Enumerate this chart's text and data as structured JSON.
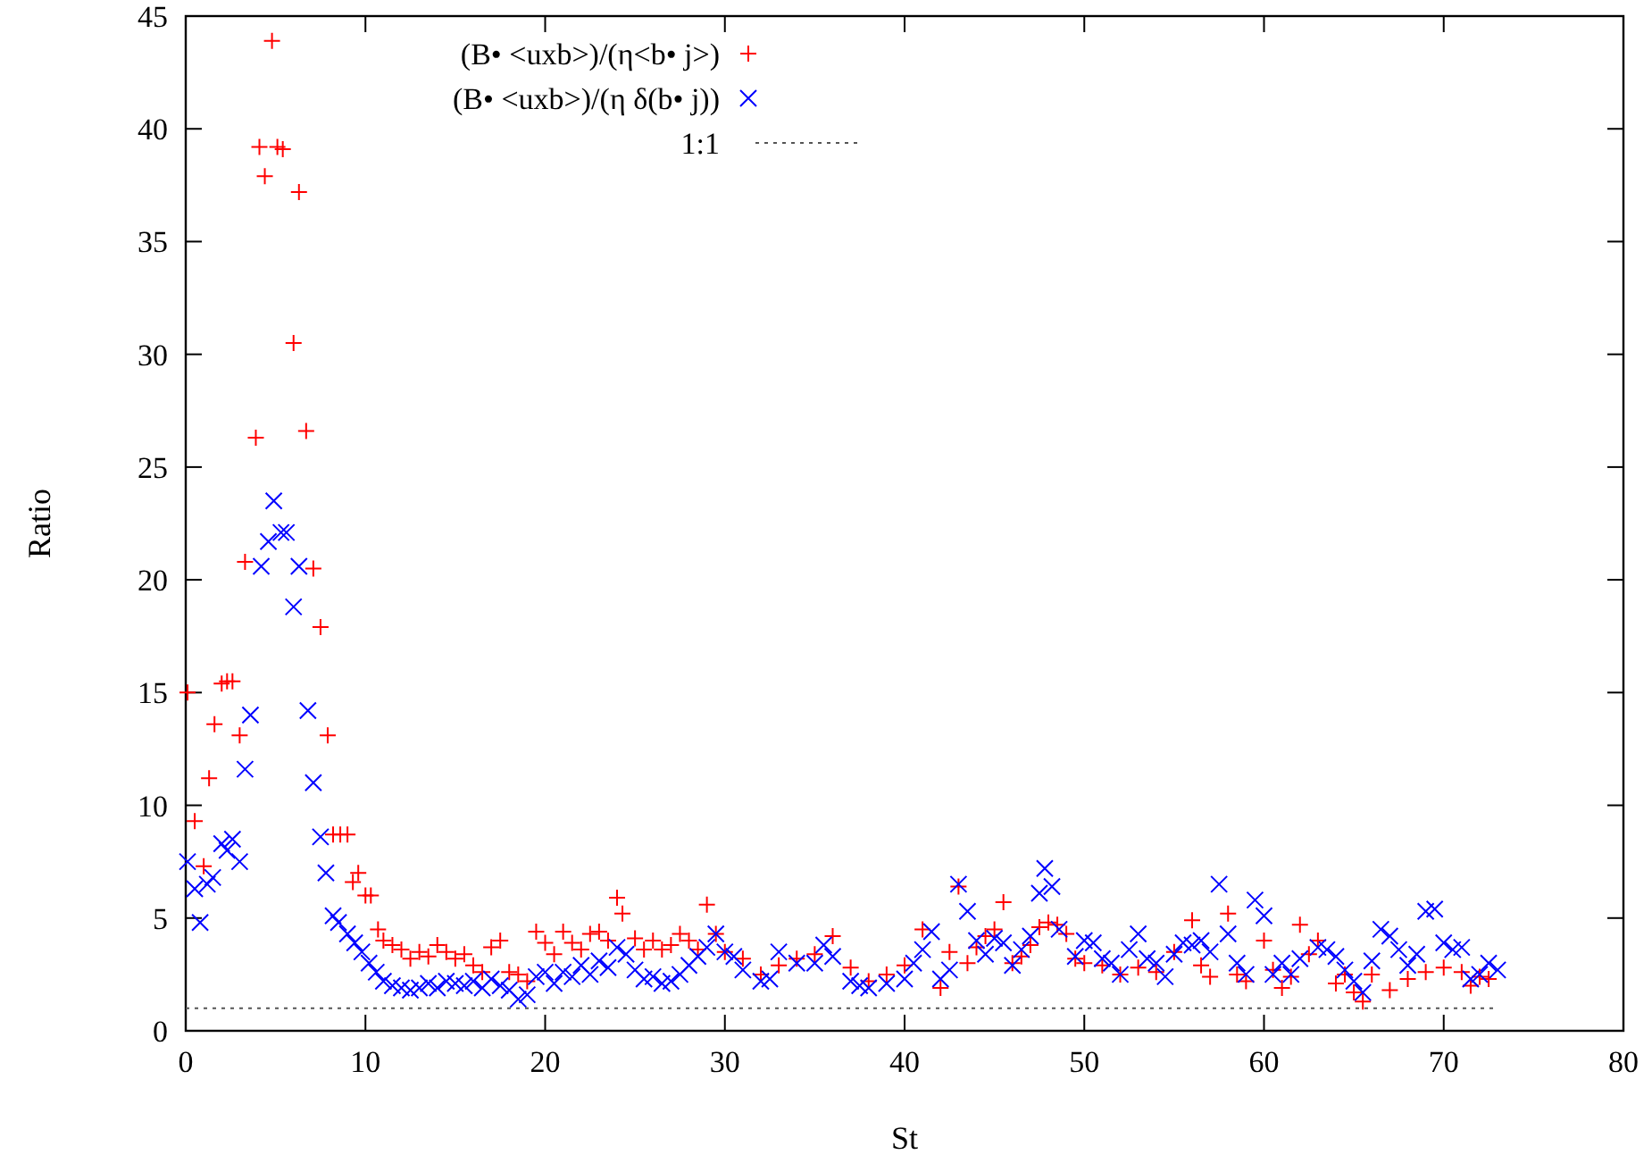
{
  "chart_data": {
    "type": "scatter",
    "xlabel": "St",
    "ylabel": "Ratio",
    "xlim": [
      0,
      80
    ],
    "xticks": [
      0,
      10,
      20,
      30,
      40,
      50,
      60,
      70,
      80
    ],
    "ylim": [
      0,
      45
    ],
    "yticks": [
      0,
      5,
      10,
      15,
      20,
      25,
      30,
      35,
      40,
      45
    ],
    "grid": false,
    "legend": "top",
    "series": [
      {
        "name": "(B• <uxb>)/(η<b• j>)",
        "color": "#ff0000",
        "marker": "plus",
        "x": [
          0.1,
          0.5,
          1.0,
          1.3,
          1.6,
          2.0,
          2.3,
          2.6,
          3.0,
          3.3,
          3.9,
          4.1,
          4.4,
          4.8,
          5.1,
          5.4,
          6.0,
          6.3,
          6.7,
          7.1,
          7.5,
          7.9,
          8.2,
          8.6,
          9.0,
          9.3,
          9.6,
          10.0,
          10.3,
          10.7,
          11.0,
          11.5,
          12,
          12.5,
          13,
          13.5,
          14,
          14.5,
          15,
          15.5,
          16,
          16.5,
          17,
          17.5,
          18,
          18.5,
          19,
          19.5,
          20,
          20.5,
          21,
          21.5,
          22,
          22.5,
          23,
          23.5,
          24,
          24.3,
          25,
          25.5,
          26,
          26.5,
          27,
          27.5,
          28,
          28.5,
          29,
          29.5,
          30,
          31,
          32,
          33,
          34,
          35,
          36,
          37,
          38,
          39,
          40,
          41,
          42,
          42.5,
          43,
          43.5,
          44,
          44.5,
          45,
          45.5,
          46,
          46.5,
          47,
          47.5,
          48,
          48.5,
          49,
          49.5,
          50,
          51,
          52,
          53,
          54,
          55,
          56,
          56.5,
          57,
          58,
          58.5,
          59,
          60,
          60.5,
          61,
          61.5,
          62,
          62.5,
          63,
          64,
          64.5,
          65,
          65.5,
          66,
          67,
          68,
          69,
          70,
          71,
          71.5,
          72,
          72.5
        ],
        "values": [
          15.0,
          9.3,
          7.3,
          11.2,
          13.6,
          15.4,
          15.5,
          15.5,
          13.1,
          20.8,
          26.3,
          39.2,
          37.9,
          43.9,
          39.2,
          39.1,
          30.5,
          37.2,
          26.6,
          20.5,
          17.9,
          13.1,
          8.7,
          8.7,
          8.7,
          6.6,
          7.0,
          6.0,
          6.0,
          4.5,
          4.0,
          3.8,
          3.6,
          3.2,
          3.5,
          3.3,
          3.8,
          3.5,
          3.2,
          3.4,
          2.9,
          2.6,
          3.7,
          4.0,
          2.6,
          2.5,
          2.2,
          4.4,
          3.9,
          3.4,
          4.4,
          3.9,
          3.6,
          4.3,
          4.4,
          4.0,
          5.9,
          5.2,
          4.1,
          3.6,
          4.0,
          3.6,
          3.8,
          4.3,
          4.0,
          3.6,
          5.6,
          4.3,
          3.5,
          3.2,
          2.5,
          2.9,
          3.2,
          3.4,
          4.2,
          2.8,
          2.2,
          2.5,
          2.9,
          4.5,
          1.9,
          3.5,
          6.4,
          3.0,
          3.7,
          4.2,
          4.5,
          5.7,
          3.0,
          3.3,
          3.8,
          4.6,
          4.8,
          4.7,
          4.3,
          3.2,
          3.0,
          2.9,
          2.5,
          2.8,
          2.6,
          3.5,
          4.9,
          2.9,
          2.4,
          5.2,
          2.5,
          2.2,
          4.0,
          2.7,
          1.9,
          2.4,
          4.7,
          3.4,
          4.0,
          2.1,
          2.5,
          1.7,
          1.3,
          2.5,
          1.8,
          2.3,
          2.6,
          2.8,
          2.6,
          2.0,
          2.4,
          2.3
        ]
      },
      {
        "name": "(B• <uxb>)/(η δ(b• j))",
        "color": "#0000ff",
        "marker": "cross",
        "x": [
          0.1,
          0.5,
          0.8,
          1.2,
          1.5,
          2.0,
          2.3,
          2.6,
          3.0,
          3.3,
          3.6,
          4.2,
          4.6,
          4.9,
          5.3,
          5.6,
          6.0,
          6.3,
          6.8,
          7.1,
          7.5,
          7.8,
          8.2,
          8.5,
          9.0,
          9.4,
          9.8,
          10.2,
          10.6,
          11,
          11.5,
          12,
          12.5,
          13,
          13.5,
          14,
          14.5,
          15,
          15.5,
          16,
          16.5,
          17,
          17.5,
          18,
          18.5,
          19,
          19.5,
          20,
          20.5,
          21,
          21.5,
          22,
          22.5,
          23,
          23.5,
          24,
          24.5,
          25,
          25.5,
          26,
          26.5,
          27,
          27.5,
          28,
          28.5,
          29,
          29.5,
          30,
          30.5,
          31,
          32,
          32.5,
          33,
          34,
          35,
          35.5,
          36,
          37,
          37.5,
          38,
          39,
          40,
          40.5,
          41,
          41.5,
          42,
          42.5,
          43,
          43.5,
          44,
          44.5,
          45,
          45.5,
          46,
          46.5,
          47,
          47.5,
          47.8,
          48.2,
          48.6,
          49.5,
          50,
          50.5,
          51,
          51.5,
          52,
          52.5,
          53,
          53.5,
          54,
          54.5,
          55,
          55.5,
          56,
          56.5,
          57,
          57.5,
          58,
          58.5,
          59,
          59.5,
          60,
          60.5,
          61,
          61.5,
          62,
          63,
          63.5,
          64,
          64.5,
          65,
          65.5,
          66,
          66.5,
          67,
          67.5,
          68,
          68.5,
          69,
          69.5,
          70,
          70.5,
          71,
          71.5,
          72,
          72.5,
          73
        ],
        "values": [
          7.5,
          6.3,
          4.8,
          6.5,
          6.8,
          8.3,
          8.0,
          8.5,
          7.5,
          11.6,
          14.0,
          20.6,
          21.7,
          23.5,
          22.1,
          22.1,
          18.8,
          20.6,
          14.2,
          11.0,
          8.6,
          7.0,
          5.1,
          4.8,
          4.3,
          3.9,
          3.5,
          3.0,
          2.6,
          2.2,
          2.0,
          1.9,
          1.8,
          1.9,
          2.1,
          1.9,
          2.2,
          2.1,
          2.0,
          2.2,
          1.9,
          2.3,
          2.0,
          1.8,
          1.4,
          1.6,
          2.4,
          2.6,
          2.1,
          2.6,
          2.4,
          2.9,
          2.5,
          3.1,
          2.8,
          3.7,
          3.4,
          2.7,
          2.3,
          2.4,
          2.1,
          2.2,
          2.5,
          2.9,
          3.3,
          3.7,
          4.3,
          3.5,
          3.3,
          2.7,
          2.2,
          2.3,
          3.5,
          3.0,
          3.0,
          3.8,
          3.3,
          2.2,
          2.0,
          1.9,
          2.1,
          2.3,
          3.0,
          3.6,
          4.4,
          2.3,
          2.7,
          6.5,
          5.3,
          4.0,
          3.4,
          4.1,
          3.9,
          2.9,
          3.6,
          4.2,
          6.1,
          7.2,
          6.4,
          4.5,
          3.3,
          4.0,
          3.9,
          3.2,
          3.0,
          2.5,
          3.6,
          4.3,
          3.2,
          3.0,
          2.4,
          3.4,
          3.9,
          3.8,
          4.0,
          3.5,
          6.5,
          4.3,
          3.0,
          2.5,
          5.8,
          5.1,
          2.5,
          3.0,
          2.5,
          3.2,
          3.7,
          3.6,
          3.3,
          2.7,
          2.2,
          1.7,
          3.1,
          4.5,
          4.2,
          3.6,
          2.9,
          3.4,
          5.3,
          5.4,
          3.9,
          3.6,
          3.7,
          2.3,
          2.5,
          3.0,
          2.7
        ]
      },
      {
        "name": "1:1",
        "type": "line",
        "color": "#555555",
        "line_style": "dotted",
        "marker": "none",
        "x": [
          0,
          73
        ],
        "values": [
          1,
          1
        ]
      }
    ]
  }
}
